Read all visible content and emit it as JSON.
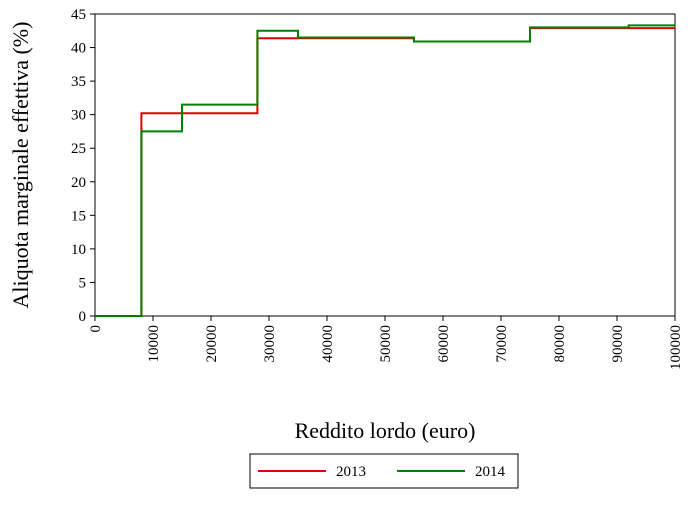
{
  "chart_data": {
    "type": "line",
    "step": true,
    "xlabel": "Reddito lordo (euro)",
    "ylabel": "Aliquota marginale effettiva (%)",
    "xlim": [
      0,
      100000
    ],
    "ylim": [
      0,
      45
    ],
    "xticks": [
      "0",
      "10000",
      "20000",
      "30000",
      "40000",
      "50000",
      "60000",
      "70000",
      "80000",
      "90000",
      "100000"
    ],
    "yticks": [
      "0",
      "5",
      "10",
      "15",
      "20",
      "25",
      "30",
      "35",
      "40",
      "45"
    ],
    "grid": false,
    "legend_position": "bottom",
    "series": [
      {
        "name": "2013",
        "color": "#e00000",
        "x": [
          0,
          8000,
          8000,
          28000,
          28000,
          55000,
          55000,
          75000,
          75000,
          100000
        ],
        "y": [
          0,
          0,
          30.2,
          30.2,
          41.4,
          41.4,
          40.9,
          40.9,
          42.9,
          42.9
        ]
      },
      {
        "name": "2014",
        "color": "#008000",
        "x": [
          0,
          8000,
          8000,
          15000,
          15000,
          28000,
          28000,
          35000,
          35000,
          55000,
          55000,
          75000,
          75000,
          92000,
          92000,
          100000
        ],
        "y": [
          0,
          0,
          27.5,
          27.5,
          31.5,
          31.5,
          42.5,
          42.5,
          41.5,
          41.5,
          40.9,
          40.9,
          43.0,
          43.0,
          43.3,
          43.3
        ]
      }
    ]
  }
}
